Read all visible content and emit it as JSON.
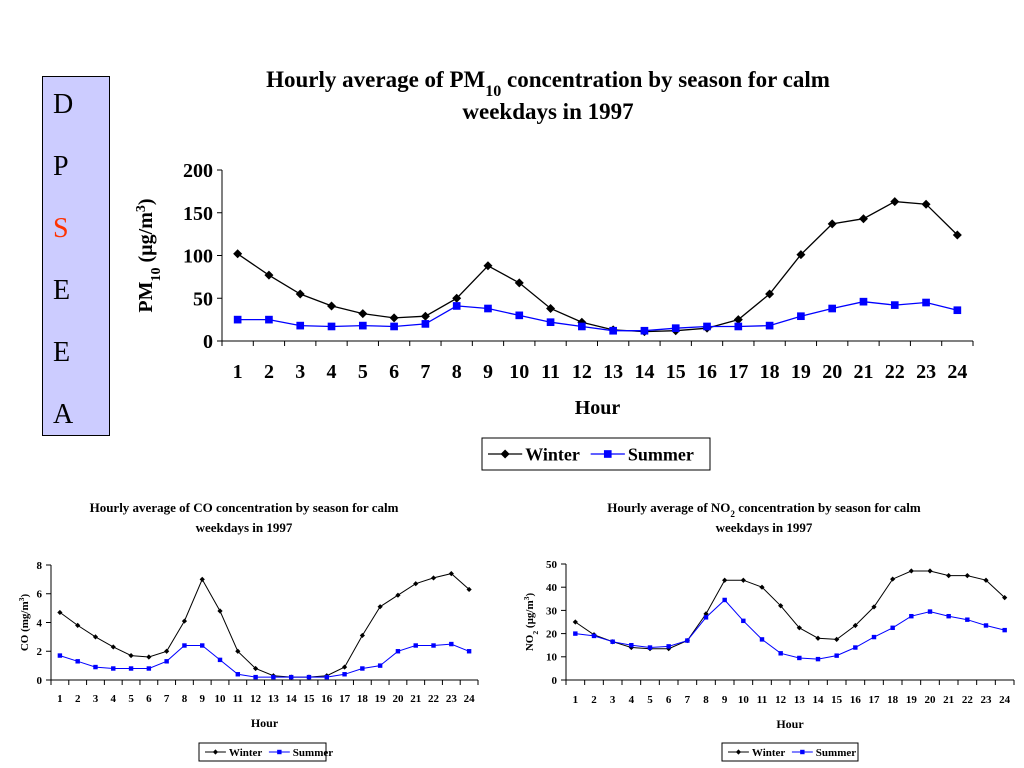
{
  "side_panel": {
    "letters": [
      "D",
      "P",
      "S",
      "E",
      "E",
      "A"
    ],
    "highlight_index": 2,
    "highlight_color": "#ff3300",
    "background": "#ccccff"
  },
  "chart_data": [
    {
      "id": "pm10",
      "type": "line",
      "title_parts": [
        [
          "Hourly average of PM",
          ""
        ],
        [
          "10",
          "sub"
        ],
        [
          " concentration by season for calm",
          ""
        ]
      ],
      "title_line2": "weekdays in 1997",
      "ylabel_parts": [
        [
          "PM",
          ""
        ],
        [
          "10",
          "sub"
        ],
        [
          " (µg/m",
          ""
        ],
        [
          "3",
          "sup"
        ],
        [
          ")",
          ""
        ]
      ],
      "xlabel": "Hour",
      "categories": [
        "1",
        "2",
        "3",
        "4",
        "5",
        "6",
        "7",
        "8",
        "9",
        "10",
        "11",
        "12",
        "13",
        "14",
        "15",
        "16",
        "17",
        "18",
        "19",
        "20",
        "21",
        "22",
        "23",
        "24"
      ],
      "ylim": [
        0,
        200
      ],
      "yticks": [
        0,
        50,
        100,
        150,
        200
      ],
      "grid": false,
      "legend_position": "bottom-center",
      "series": [
        {
          "name": "Winter",
          "color": "#000000",
          "marker": "diamond",
          "values": [
            102,
            77,
            55,
            41,
            32,
            27,
            29,
            50,
            88,
            68,
            38,
            22,
            13,
            11,
            12,
            15,
            25,
            55,
            101,
            137,
            143,
            163,
            160,
            124
          ]
        },
        {
          "name": "Summer",
          "color": "#0000ff",
          "marker": "square",
          "values": [
            25,
            25,
            18,
            17,
            18,
            17,
            20,
            41,
            38,
            30,
            22,
            17,
            12,
            12,
            15,
            17,
            17,
            18,
            29,
            38,
            46,
            42,
            45,
            36
          ]
        }
      ]
    },
    {
      "id": "co",
      "type": "line",
      "title_parts": [
        [
          "Hourly average of CO concentration by season for calm",
          ""
        ]
      ],
      "title_line2": "weekdays in 1997",
      "ylabel_parts": [
        [
          "CO (mg/m",
          ""
        ],
        [
          "3",
          "sup"
        ],
        [
          ")",
          ""
        ]
      ],
      "xlabel": "Hour",
      "categories": [
        "1",
        "2",
        "3",
        "4",
        "5",
        "6",
        "7",
        "8",
        "9",
        "10",
        "11",
        "12",
        "13",
        "14",
        "15",
        "16",
        "17",
        "18",
        "19",
        "20",
        "21",
        "22",
        "23",
        "24"
      ],
      "ylim": [
        0,
        8
      ],
      "yticks": [
        0,
        2,
        4,
        6,
        8
      ],
      "grid": false,
      "legend_position": "bottom-center",
      "series": [
        {
          "name": "Winter",
          "color": "#000000",
          "marker": "diamond",
          "values": [
            4.7,
            3.8,
            3.0,
            2.3,
            1.7,
            1.6,
            2.0,
            4.1,
            7.0,
            4.8,
            2.0,
            0.8,
            0.3,
            0.2,
            0.2,
            0.3,
            0.9,
            3.1,
            5.1,
            5.9,
            6.7,
            7.1,
            7.4,
            6.3
          ]
        },
        {
          "name": "Summer",
          "color": "#0000ff",
          "marker": "square",
          "values": [
            1.7,
            1.3,
            0.9,
            0.8,
            0.8,
            0.8,
            1.3,
            2.4,
            2.4,
            1.4,
            0.4,
            0.2,
            0.2,
            0.2,
            0.2,
            0.2,
            0.4,
            0.8,
            1.0,
            2.0,
            2.4,
            2.4,
            2.5,
            2.0
          ]
        }
      ]
    },
    {
      "id": "no2",
      "type": "line",
      "title_parts": [
        [
          "Hourly average of NO",
          ""
        ],
        [
          "2",
          "sub"
        ],
        [
          " concentration by season for calm",
          ""
        ]
      ],
      "title_line2": "weekdays in 1997",
      "ylabel_parts": [
        [
          "NO",
          ""
        ],
        [
          "2",
          "sub"
        ],
        [
          " (µg/m",
          ""
        ],
        [
          "3",
          "sup"
        ],
        [
          ")",
          ""
        ]
      ],
      "xlabel": "Hour",
      "categories": [
        "1",
        "2",
        "3",
        "4",
        "5",
        "6",
        "7",
        "8",
        "9",
        "10",
        "11",
        "12",
        "13",
        "14",
        "15",
        "16",
        "17",
        "18",
        "19",
        "20",
        "21",
        "22",
        "23",
        "24"
      ],
      "ylim": [
        0,
        50
      ],
      "yticks": [
        0,
        10,
        20,
        30,
        40,
        50
      ],
      "grid": false,
      "legend_position": "bottom-center",
      "series": [
        {
          "name": "Winter",
          "color": "#000000",
          "marker": "diamond",
          "values": [
            25,
            19.5,
            16.5,
            14,
            13.5,
            13.5,
            17,
            28.5,
            43,
            43,
            40,
            32,
            22.5,
            18,
            17.5,
            23.5,
            31.5,
            43.5,
            47,
            47,
            45,
            45,
            43,
            35.5
          ]
        },
        {
          "name": "Summer",
          "color": "#0000ff",
          "marker": "square",
          "values": [
            20,
            19,
            16.5,
            15,
            14,
            14.5,
            17,
            27,
            34.5,
            25.5,
            17.5,
            11.5,
            9.5,
            9,
            10.5,
            14,
            18.5,
            22.5,
            27.5,
            29.5,
            27.5,
            26,
            23.5,
            21.5
          ]
        }
      ]
    }
  ]
}
